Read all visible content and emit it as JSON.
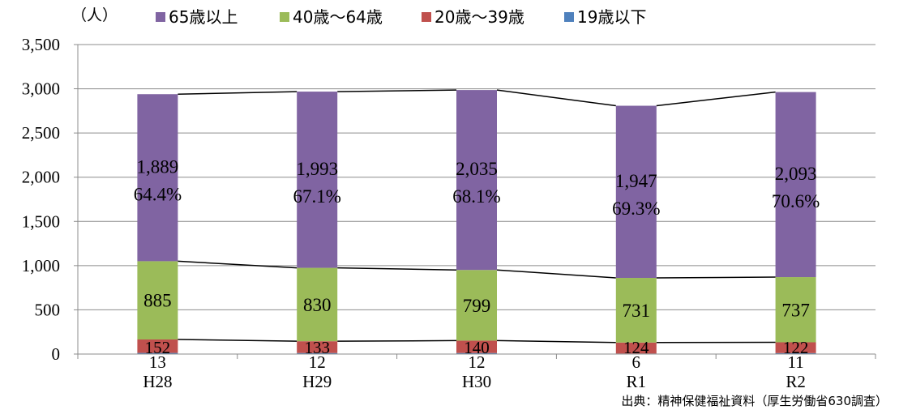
{
  "chart_data": {
    "type": "bar",
    "stacked": true,
    "unit_label": "（人）",
    "categories": [
      "H28",
      "H29",
      "H30",
      "R1",
      "R2"
    ],
    "series": [
      {
        "name": "19歳以下",
        "color": "#4F81BD",
        "values": [
          13,
          12,
          12,
          6,
          11
        ]
      },
      {
        "name": "20歳～39歳",
        "color": "#C0504D",
        "values": [
          152,
          133,
          140,
          124,
          122
        ]
      },
      {
        "name": "40歳～64歳",
        "color": "#9BBB59",
        "values": [
          885,
          830,
          799,
          731,
          737
        ]
      },
      {
        "name": "65歳以上",
        "color": "#8064A2",
        "values": [
          1889,
          1993,
          2035,
          1947,
          2093
        ]
      }
    ],
    "legend_order": [
      "65歳以上",
      "40歳～64歳",
      "20歳～39歳",
      "19歳以下"
    ],
    "percent_labels_65plus": [
      "64.4%",
      "67.1%",
      "68.1%",
      "69.3%",
      "70.6%"
    ],
    "y_ticks": [
      "0",
      "500",
      "1,000",
      "1,500",
      "2,000",
      "2,500",
      "3,000",
      "3,500"
    ],
    "ylim": [
      0,
      3500
    ],
    "legend_position": "top",
    "grid": true,
    "series_lines": true
  },
  "source": "出典：精神保健福祉資料（厚生労働省630調査）"
}
